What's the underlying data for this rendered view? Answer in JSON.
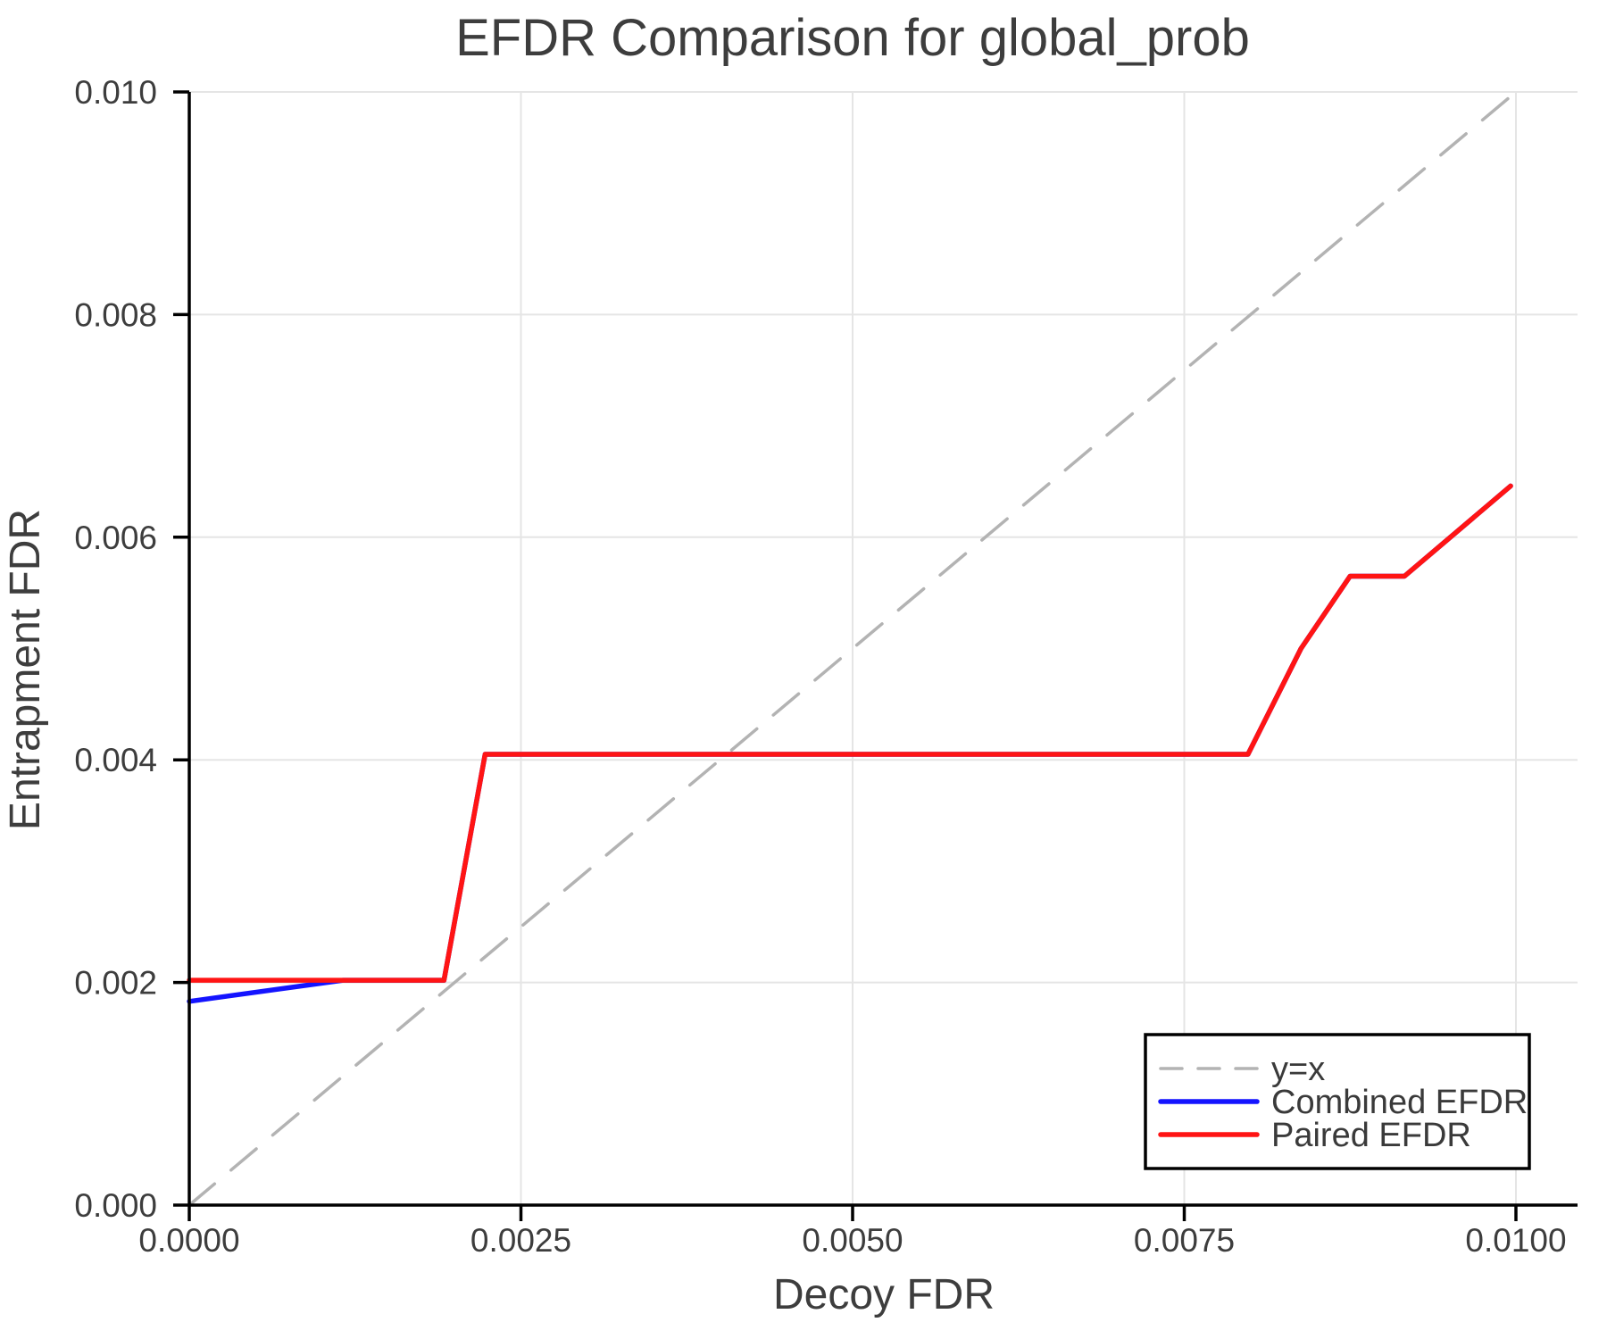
{
  "title": "EFDR Comparison for global_prob",
  "chart_data": {
    "type": "line",
    "title": "EFDR Comparison for global_prob",
    "xlabel": "Decoy FDR",
    "ylabel": "Entrapment FDR",
    "xlim": [
      0,
      0.010465
    ],
    "ylim": [
      0,
      0.01
    ],
    "grid": true,
    "legend_position": "lower right",
    "x_ticks": [
      0.0,
      0.0025,
      0.005,
      0.0075,
      0.01
    ],
    "x_tick_labels": [
      "0.0000",
      "0.0025",
      "0.0050",
      "0.0075",
      "0.0100"
    ],
    "y_ticks": [
      0.0,
      0.002,
      0.004,
      0.006,
      0.008,
      0.01
    ],
    "y_tick_labels": [
      "0.000",
      "0.002",
      "0.004",
      "0.006",
      "0.008",
      "0.010"
    ],
    "series": [
      {
        "name": "y=x",
        "color": "#b3b3b3",
        "style": "dashed",
        "stroke_width": 3.5,
        "x": [
          0.0,
          0.01
        ],
        "y": [
          0.0,
          0.01
        ]
      },
      {
        "name": "Combined EFDR",
        "color": "#1414ff",
        "style": "solid",
        "stroke_width": 5.5,
        "x": [
          0.0,
          0.00116,
          0.00192,
          0.00223,
          0.00798,
          0.00838,
          0.00875,
          0.00916,
          0.00996
        ],
        "y": [
          0.00183,
          0.00202,
          0.00202,
          0.00405,
          0.00405,
          0.005,
          0.00565,
          0.00565,
          0.00646
        ]
      },
      {
        "name": "Paired EFDR",
        "color": "#ff1414",
        "style": "solid",
        "stroke_width": 5.5,
        "x": [
          0.0,
          0.00192,
          0.00223,
          0.00798,
          0.00838,
          0.00875,
          0.00916,
          0.00996
        ],
        "y": [
          0.00202,
          0.00202,
          0.00405,
          0.00405,
          0.005,
          0.00565,
          0.00565,
          0.00646
        ]
      }
    ],
    "colors": {
      "text": "#3d3d3d",
      "spine": "#000000",
      "grid": "#e5e5e5",
      "legend_border": "#000000",
      "legend_background": "#ffffff"
    }
  }
}
